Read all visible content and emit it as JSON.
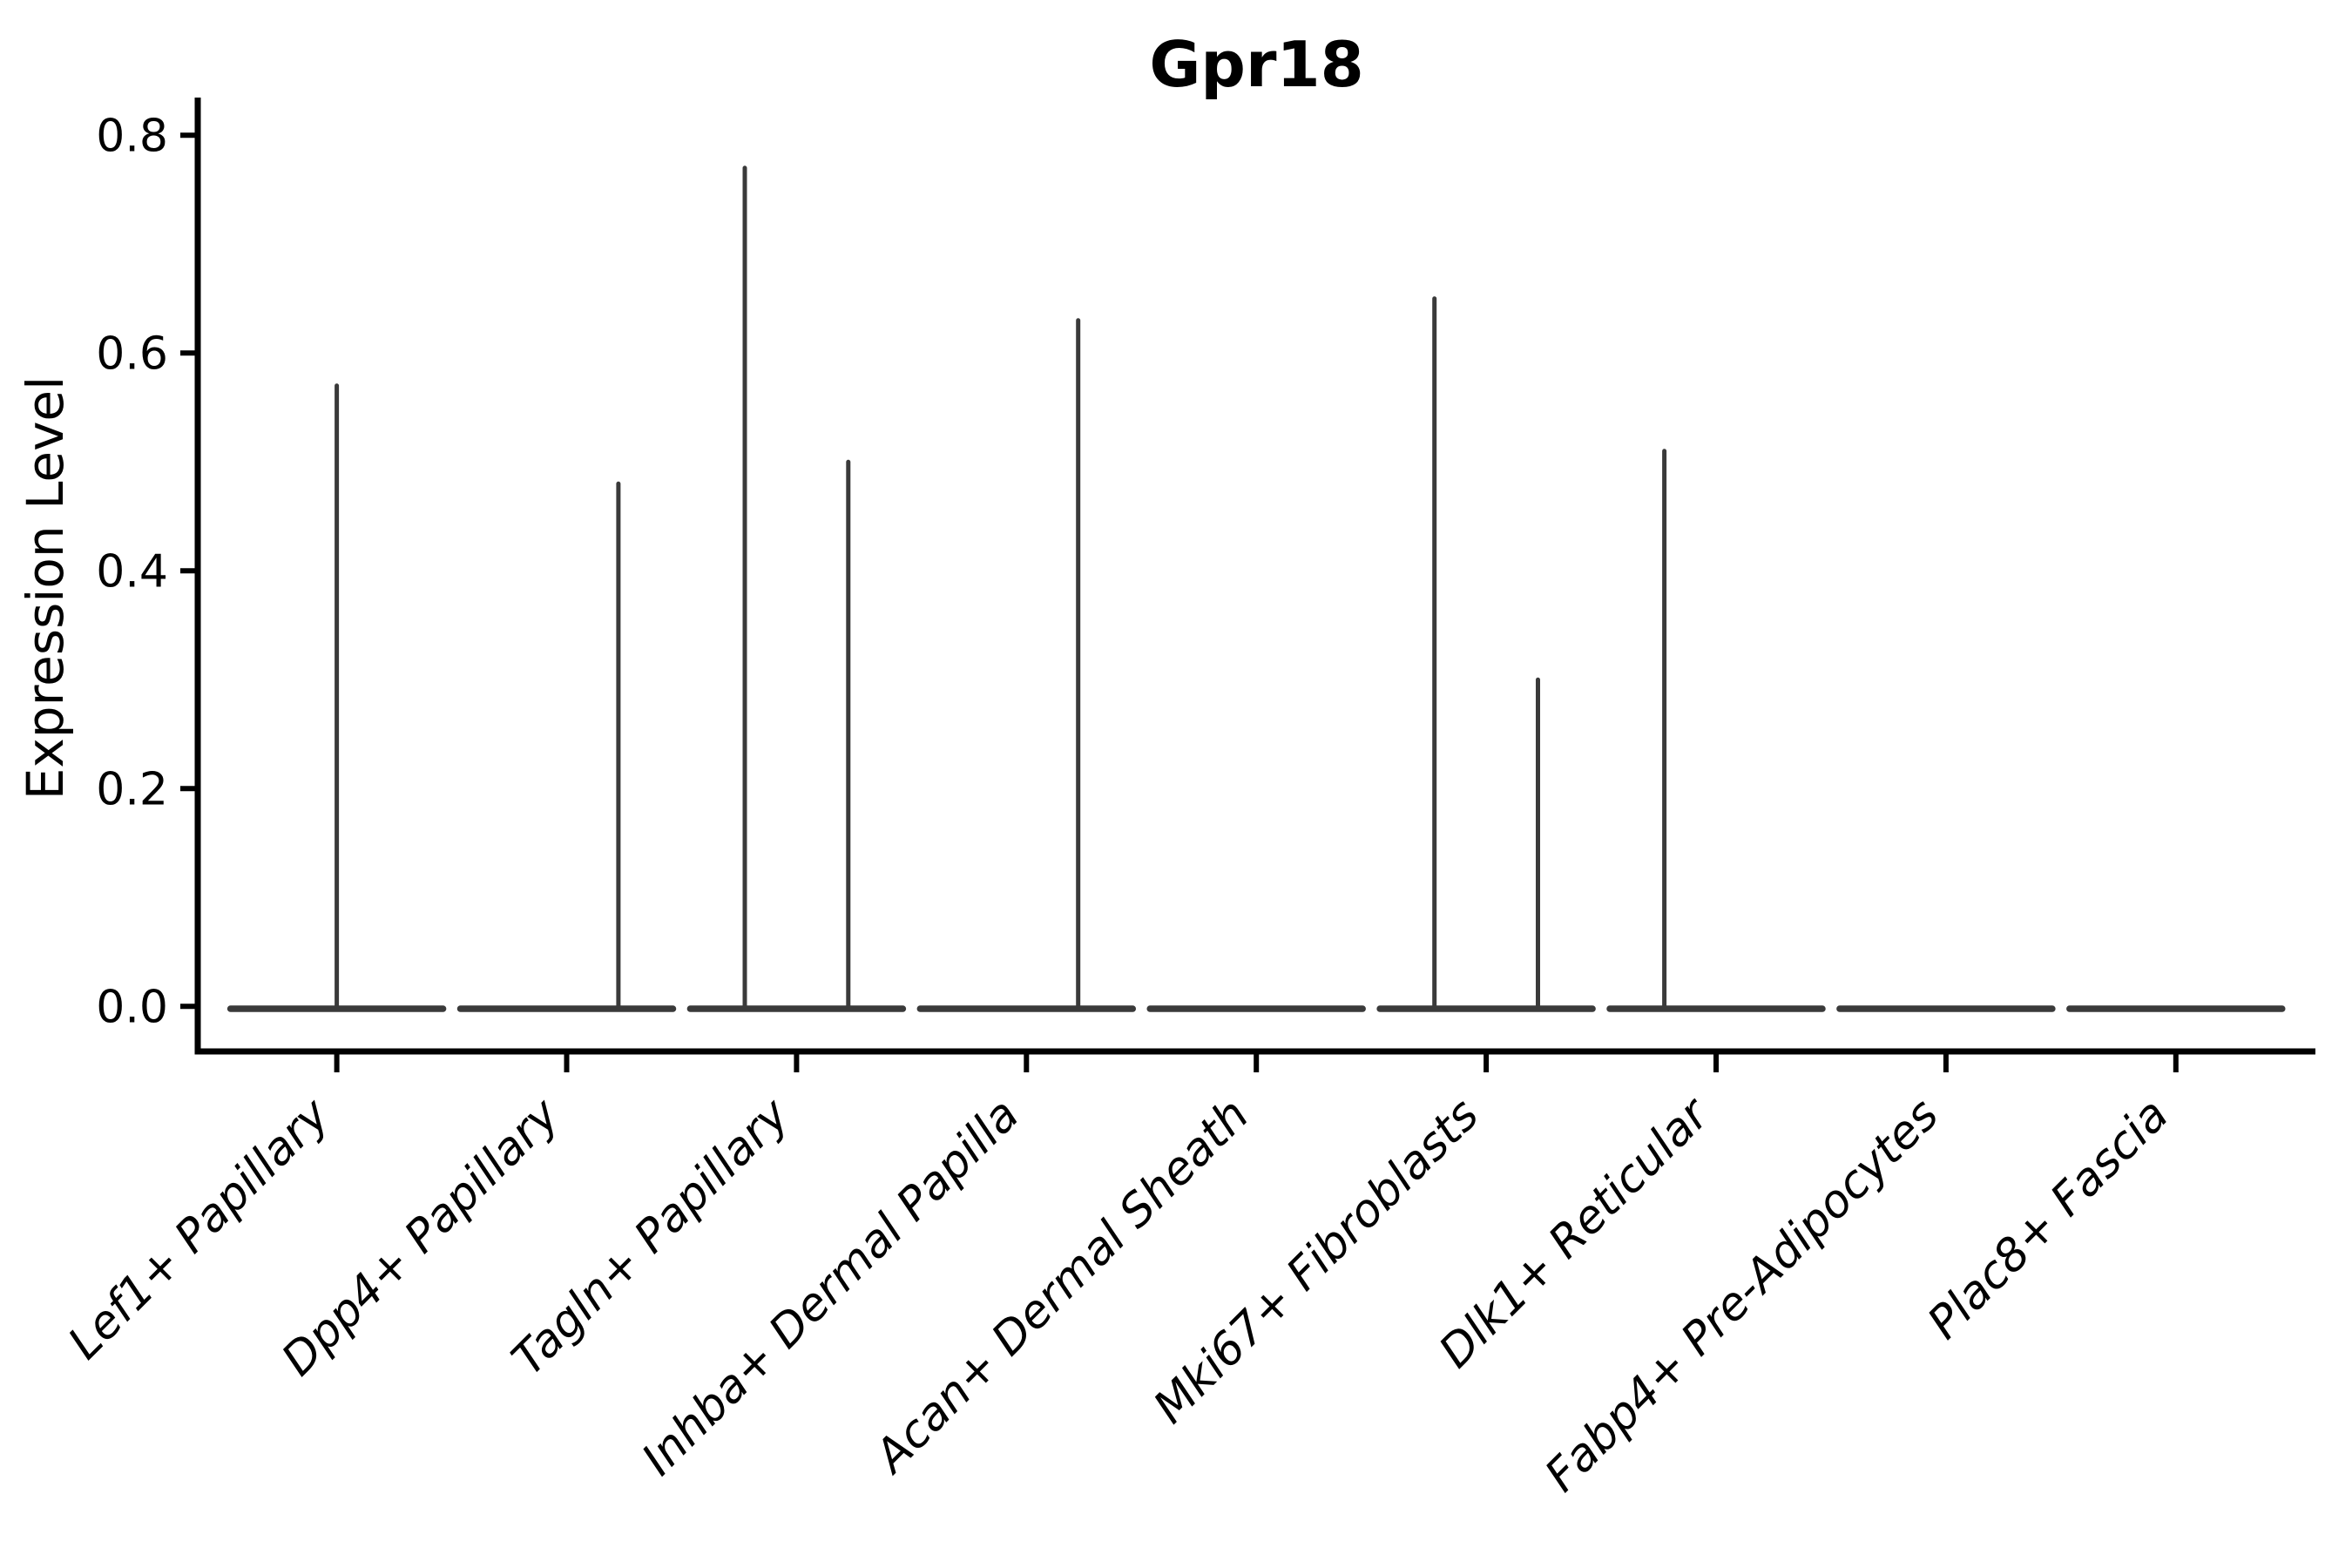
{
  "figure": {
    "background": "#ffffff"
  },
  "chart_data": {
    "type": "violin",
    "title": "Gpr18",
    "xlabel": "",
    "ylabel": "Expression Level",
    "ylim": [
      0,
      0.8
    ],
    "yticks": [
      0.0,
      0.2,
      0.4,
      0.6,
      0.8
    ],
    "ytick_labels": [
      "0.0",
      "0.2",
      "0.4",
      "0.6",
      "0.8"
    ],
    "grid": false,
    "legend_position": "none",
    "violin_color": "#3a3a3a",
    "axis_color": "#000000",
    "categories": [
      "Lef1+ Papillary",
      "Dpp4+ Papillary",
      "Tagln+ Papillary",
      "Inhba+ Dermal Papilla",
      "Acan+ Dermal Sheath",
      "Mki67+ Fibroblasts",
      "Dlk1+ Reticular",
      "Fabp4+ Pre-Adipocytes",
      "Plac8+ Fascia"
    ],
    "series": [
      {
        "category": "Lef1+ Papillary",
        "baseline": 0.0,
        "violins": [
          {
            "position": "center",
            "max_expression": 0.57
          }
        ]
      },
      {
        "category": "Dpp4+ Papillary",
        "baseline": 0.0,
        "violins": [
          {
            "position": "right",
            "max_expression": 0.48
          }
        ]
      },
      {
        "category": "Tagln+ Papillary",
        "baseline": 0.0,
        "violins": [
          {
            "position": "left",
            "max_expression": 0.77
          },
          {
            "position": "right",
            "max_expression": 0.5
          }
        ]
      },
      {
        "category": "Inhba+ Dermal Papilla",
        "baseline": 0.0,
        "violins": [
          {
            "position": "right",
            "max_expression": 0.63
          }
        ]
      },
      {
        "category": "Acan+ Dermal Sheath",
        "baseline": 0.0,
        "violins": []
      },
      {
        "category": "Mki67+ Fibroblasts",
        "baseline": 0.0,
        "violins": [
          {
            "position": "left",
            "max_expression": 0.65
          },
          {
            "position": "right",
            "max_expression": 0.3
          }
        ]
      },
      {
        "category": "Dlk1+ Reticular",
        "baseline": 0.0,
        "violins": [
          {
            "position": "left",
            "max_expression": 0.51
          }
        ]
      },
      {
        "category": "Fabp4+ Pre-Adipocytes",
        "baseline": 0.0,
        "violins": []
      },
      {
        "category": "Plac8+ Fascia",
        "baseline": 0.0,
        "violins": []
      }
    ]
  }
}
